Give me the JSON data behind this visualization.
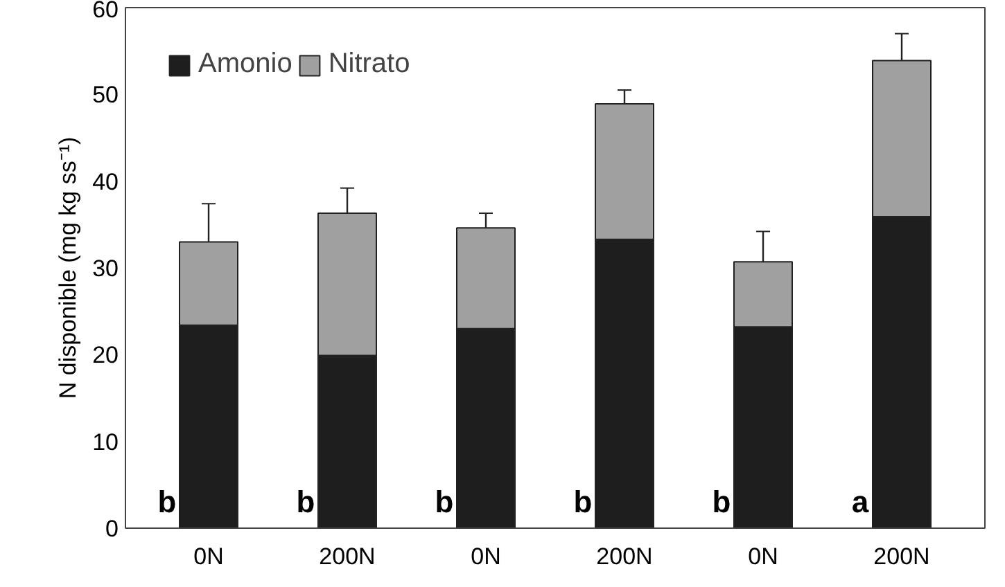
{
  "chart_data": {
    "type": "bar",
    "stacked": true,
    "ylabel": "N disponible (mg kg ss⁻¹)",
    "categories": [
      "0N",
      "200N",
      "0N",
      "200N",
      "0N",
      "200N"
    ],
    "series": [
      {
        "name": "Amonio",
        "color": "#1e1e1e",
        "values": [
          23.4,
          19.9,
          23.0,
          33.3,
          23.2,
          35.9
        ],
        "errors": [
          1.6,
          2.1,
          2.0,
          0.4,
          0.5,
          3.3
        ]
      },
      {
        "name": "Nitrato",
        "color": "#a0a0a0",
        "values": [
          9.6,
          16.4,
          11.6,
          15.6,
          7.5,
          18.0
        ],
        "errors": [
          4.4,
          2.9,
          1.7,
          1.6,
          3.5,
          3.1
        ]
      }
    ],
    "annotations": [
      "b",
      "b",
      "b",
      "b",
      "b",
      "a"
    ],
    "ylim": [
      0,
      60
    ],
    "yticks": [
      0,
      10,
      20,
      30,
      40,
      50,
      60
    ],
    "grid": false,
    "legend": "top left"
  }
}
